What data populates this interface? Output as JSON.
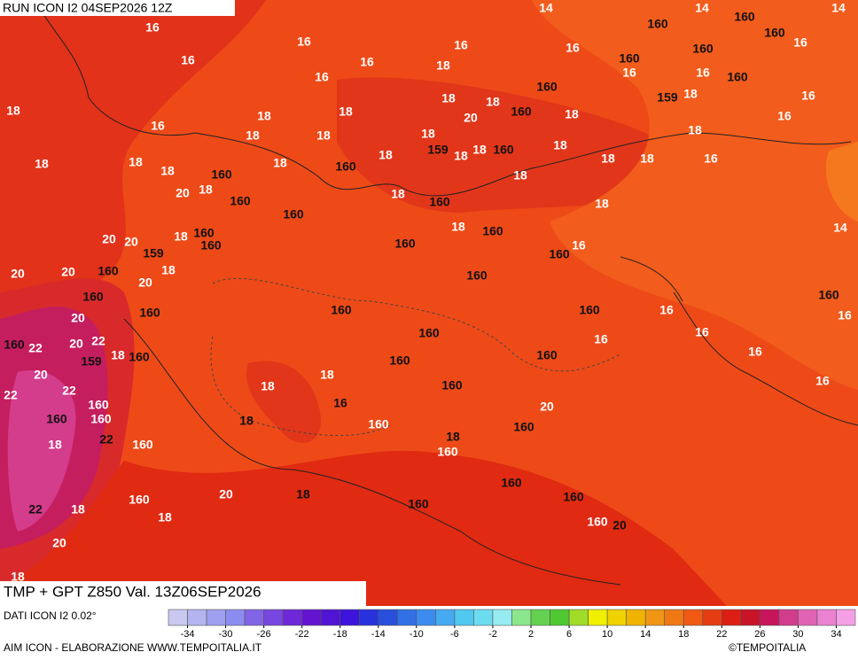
{
  "header": {
    "run": "RUN ICON I2 04SEP2026 12Z"
  },
  "footer": {
    "title": "TMP + GPT Z850 Val. 13Z06SEP2026",
    "source": "DATI ICON I2 0.02°",
    "credit": "AIM ICON - ELABORAZIONE WWW.TEMPOITALIA.IT",
    "copyright": "©TEMPOITALIA"
  },
  "colorbar": {
    "colors": [
      "#c8c8f0",
      "#b4b4f0",
      "#a0a0f0",
      "#8c8cf0",
      "#8264e6",
      "#7846e0",
      "#6e28d8",
      "#6414d0",
      "#5014d2",
      "#3c14dc",
      "#2832dc",
      "#2850dc",
      "#3270e6",
      "#3c8cf0",
      "#46aaf0",
      "#50c8f0",
      "#6edcf0",
      "#96ecf0",
      "#8ce68c",
      "#64d250",
      "#50c832",
      "#a0dc28",
      "#f0f000",
      "#f0d200",
      "#f0b400",
      "#f09614",
      "#f07814",
      "#f05a14",
      "#e63c14",
      "#dc1e14",
      "#c81428",
      "#c8145a",
      "#d23c8c",
      "#e164b4",
      "#eb82d2",
      "#f5a0e6"
    ],
    "ticks": [
      -34,
      -30,
      -26,
      -22,
      -18,
      -14,
      -10,
      -6,
      -2,
      2,
      6,
      10,
      14,
      18,
      22,
      26,
      30,
      34
    ]
  },
  "map": {
    "labels": [
      "16",
      "16",
      "16",
      "16",
      "16",
      "16",
      "18",
      "14",
      "14",
      "14",
      "160",
      "160",
      "160",
      "16",
      "160",
      "16",
      "160",
      "16",
      "16",
      "160",
      "160",
      "18",
      "18",
      "159",
      "18",
      "16",
      "18",
      "16",
      "18",
      "18",
      "20",
      "160",
      "18",
      "16",
      "18",
      "18",
      "18",
      "18",
      "18",
      "18",
      "18",
      "18",
      "160",
      "18",
      "159",
      "18",
      "18",
      "160",
      "18",
      "18",
      "18",
      "16",
      "160",
      "18",
      "20",
      "18",
      "18",
      "160",
      "160",
      "18",
      "160",
      "160",
      "18",
      "160",
      "18",
      "160",
      "14",
      "20",
      "20",
      "160",
      "16",
      "159",
      "160",
      "20",
      "20",
      "160",
      "18",
      "160",
      "20",
      "160",
      "160",
      "160",
      "160",
      "160",
      "16",
      "16",
      "20",
      "160",
      "16",
      "16",
      "160",
      "22",
      "20",
      "22",
      "18",
      "160",
      "159",
      "160",
      "16",
      "160",
      "20",
      "18",
      "16",
      "22",
      "18",
      "160",
      "22",
      "160",
      "16",
      "20",
      "160",
      "160",
      "18",
      "160",
      "160",
      "22",
      "18",
      "160",
      "18",
      "160",
      "160",
      "18",
      "20",
      "160",
      "160",
      "160",
      "22",
      "18",
      "18",
      "160",
      "20",
      "20",
      "18"
    ]
  }
}
